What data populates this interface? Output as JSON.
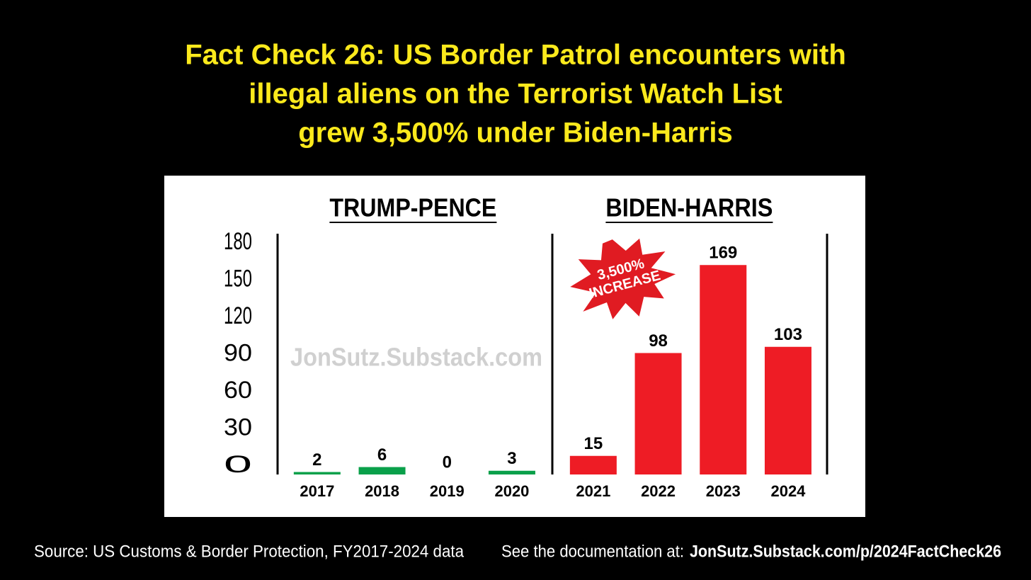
{
  "title": [
    "Fact Check 26: US Border Patrol encounters with",
    "illegal aliens on the Terrorist Watch List",
    "grew 3,500% under Biden-Harris"
  ],
  "chart_data": {
    "type": "bar",
    "groups": [
      {
        "name": "TRUMP-PENCE",
        "color": "#0aa04a",
        "categories": [
          "2017",
          "2018",
          "2019",
          "2020"
        ],
        "values": [
          2,
          6,
          0,
          3
        ]
      },
      {
        "name": "BIDEN-HARRIS",
        "color": "#ee1c25",
        "categories": [
          "2021",
          "2022",
          "2023",
          "2024"
        ],
        "values": [
          15,
          98,
          169,
          103
        ]
      }
    ],
    "ylim": [
      0,
      180
    ],
    "yticks": [
      0,
      30,
      60,
      90,
      120,
      150,
      180
    ],
    "grid": false,
    "annotation": [
      "3,500%",
      "INCREASE"
    ],
    "watermark": "JonSutz.Substack.com"
  },
  "footer": {
    "source": "Source: US Customs & Border Protection, FY2017-2024 data",
    "doc_prefix": "See the documentation at:",
    "doc_link": "JonSutz.Substack.com/p/2024FactCheck26"
  }
}
